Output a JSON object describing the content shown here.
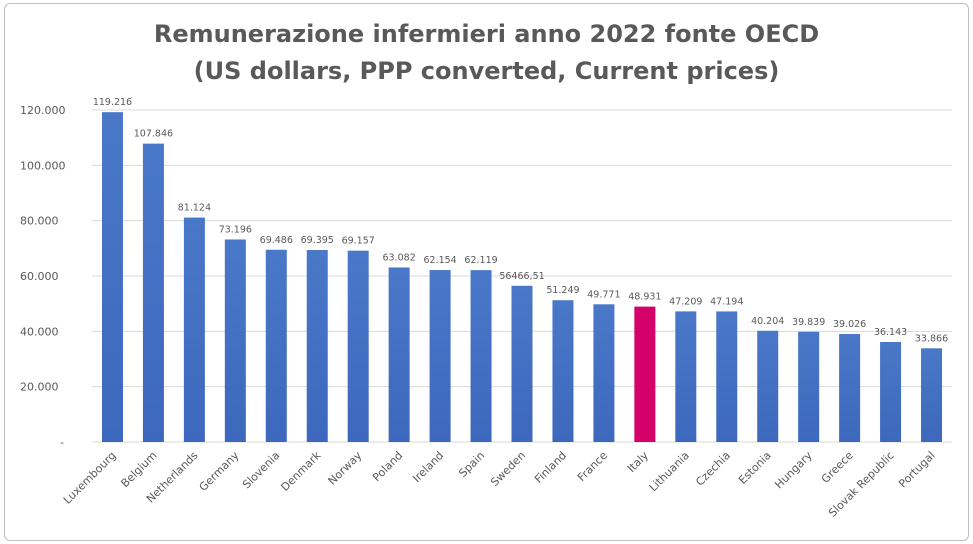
{
  "chart_data": {
    "type": "bar",
    "title_lines": [
      "Remunerazione infermieri anno 2022 fonte OECD",
      "(US dollars, PPP converted, Current prices)"
    ],
    "categories": [
      "Luxembourg",
      "Belgium",
      "Netherlands",
      "Germany",
      "Slovenia",
      "Denmark",
      "Norway",
      "Poland",
      "Ireland",
      "Spain",
      "Sweden",
      "Finland",
      "France",
      "Italy",
      "Lithuania",
      "Czechia",
      "Estonia",
      "Hungary",
      "Greece",
      "Slovak Republic",
      "Portugal"
    ],
    "values": [
      119216,
      107846,
      81124,
      73196,
      69486,
      69395,
      69157,
      63082,
      62154,
      62119,
      56466.51,
      51249,
      49771,
      48931,
      47209,
      47194,
      40204,
      39839,
      39026,
      36143,
      33866
    ],
    "data_labels": [
      "119.216",
      "107.846",
      "81.124",
      "73.196",
      "69.486",
      "69.395",
      "69.157",
      "63.082",
      "62.154",
      "62.119",
      "56466,51",
      "51.249",
      "49.771",
      "48.931",
      "47.209",
      "47.194",
      "40.204",
      "39.839",
      "39.026",
      "36.143",
      "33.866"
    ],
    "ylim": [
      0,
      120000
    ],
    "yticks": [
      0,
      20000,
      40000,
      60000,
      80000,
      100000,
      120000
    ],
    "ytick_labels": [
      "-",
      "20.000",
      "40.000",
      "60.000",
      "80.000",
      "100.000",
      "120.000"
    ],
    "grid": true,
    "legend": "none",
    "colors": {
      "default": "#4472c4",
      "highlight": "#d6006b",
      "highlight_category": "Italy",
      "title": "#595959",
      "text": "#595959",
      "grid": "#d9d9d9"
    }
  }
}
